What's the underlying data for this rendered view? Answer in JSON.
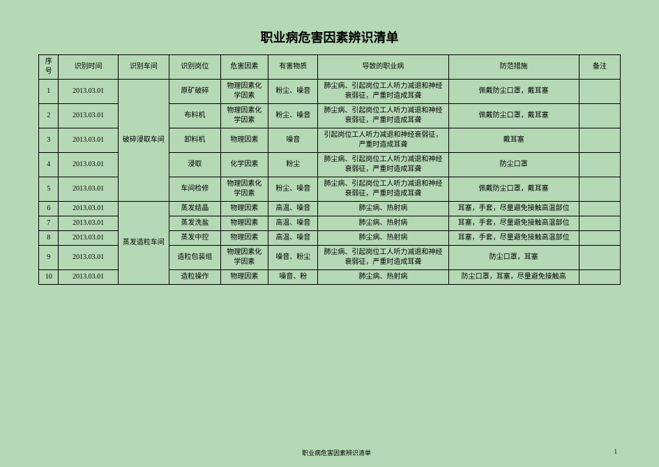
{
  "title": "职业病危害因素辨识清单",
  "columns": {
    "seq": "序号",
    "time": "识别时间",
    "workshop": "识别车间",
    "post": "识别岗位",
    "hazard": "危害因素",
    "substance": "有害物质",
    "disease": "导致的职业病",
    "measure": "防范措施",
    "remark": "备注"
  },
  "workshop1": "破碎浸取车间",
  "workshop2": "蒸发造粒车间",
  "rows": {
    "r1": {
      "seq": "1",
      "time": "2013.03.01",
      "post": "原矿破碎",
      "hazard": "物理因素化学因素",
      "substance": "粉尘、噪音",
      "disease": "肺尘病、引起岗位工人听力减退和神经衰弱征，严重时造成耳聋",
      "measure": "佩戴防尘口罩，戴耳塞",
      "remark": ""
    },
    "r2": {
      "seq": "2",
      "time": "2013.03.01",
      "post": "布料机",
      "hazard": "物理因素化学因素",
      "substance": "粉尘、噪音",
      "disease": "肺尘病、引起岗位工人听力减退和神经衰弱征，严重时造成耳聋",
      "measure": "佩戴防尘口罩，戴耳塞",
      "remark": ""
    },
    "r3": {
      "seq": "3",
      "time": "2013.03.01",
      "post": "卸料机",
      "hazard": "物理因素",
      "substance": "噪音",
      "disease": "引起岗位工人听力减退和神经衰弱征，严重时造成耳聋",
      "measure": "戴耳塞",
      "remark": ""
    },
    "r4": {
      "seq": "4",
      "time": "2013.03.01",
      "post": "浸取",
      "hazard": "化学因素",
      "substance": "粉尘",
      "disease": "肺尘病、引起岗位工人听力减退和神经衰弱征，严重时造成耳聋",
      "measure": "防尘口罩",
      "remark": ""
    },
    "r5": {
      "seq": "5",
      "time": "2013.03.01",
      "post": "车间检修",
      "hazard": "物理因素化学因素",
      "substance": "粉尘、噪音",
      "disease": "肺尘病、引起岗位工人听力减退和神经衰弱征，严重时造成耳聋",
      "measure": "佩戴防尘口罩，戴耳塞",
      "remark": ""
    },
    "r6": {
      "seq": "6",
      "time": "2013.03.01",
      "post": "蒸发结晶",
      "hazard": "物理因素",
      "substance": "高温、噪音",
      "disease": "肺尘病、热射病",
      "measure": "耳塞，手套，尽量避免接触高温部位",
      "remark": ""
    },
    "r7": {
      "seq": "7",
      "time": "2013.03.01",
      "post": "蒸发洗盐",
      "hazard": "物理因素",
      "substance": "高温、噪音",
      "disease": "肺尘病、热射病",
      "measure": "耳塞，手套，尽量避免接触高温部位",
      "remark": ""
    },
    "r8": {
      "seq": "8",
      "time": "2013.03.01",
      "post": "蒸发中控",
      "hazard": "物理因素",
      "substance": "高温、噪音",
      "disease": "肺尘病、热射病",
      "measure": "耳塞，手套，尽量避免接触高温部位",
      "remark": ""
    },
    "r9": {
      "seq": "9",
      "time": "2013.03.01",
      "post": "造粒包装组",
      "hazard": "物理因素化学因素",
      "substance": "噪音、粉尘",
      "disease": "肺尘病、引起岗位工人听力减退和神经衰弱征，严重时造成耳聋",
      "measure": "防尘口罩，耳塞",
      "remark": ""
    },
    "r10": {
      "seq": "10",
      "time": "2013.03.01",
      "post": "造粒操作",
      "hazard": "物理因素",
      "substance": "噪音、粉",
      "disease": "肺尘病、热射病",
      "measure": "防尘口罩，耳塞，尽量避免接触高",
      "remark": ""
    }
  },
  "footer_text": "职业病危害因素辨识清单",
  "footer_page": "1",
  "colors": {
    "background": "#b5d8b5",
    "border": "#000000",
    "text": "#000000"
  }
}
